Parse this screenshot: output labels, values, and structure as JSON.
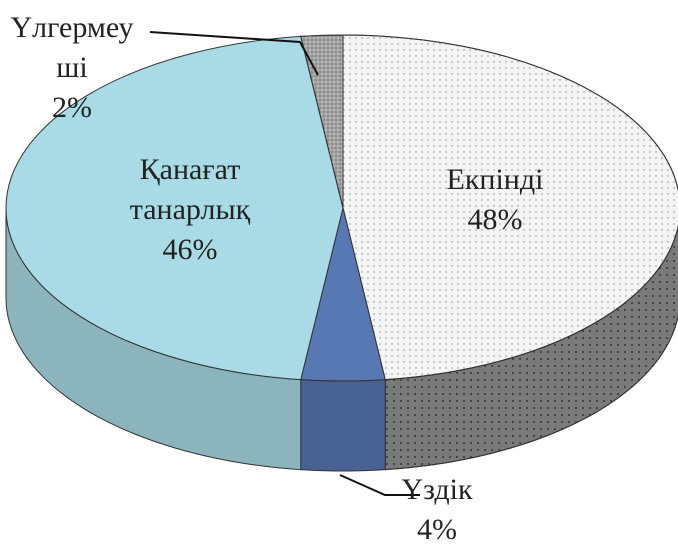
{
  "chart_data": {
    "type": "pie",
    "categories": [
      "Екпінді",
      "Үздік",
      "Қанағат танарлық",
      "Үлгермеуші"
    ],
    "values": [
      48,
      4,
      46,
      2
    ],
    "value_labels": [
      "48%",
      "4%",
      "46%",
      "2%"
    ],
    "colors": [
      "#f4f4f4",
      "#5878b4",
      "#a9dbe6",
      "#b8b8b8"
    ]
  }
}
